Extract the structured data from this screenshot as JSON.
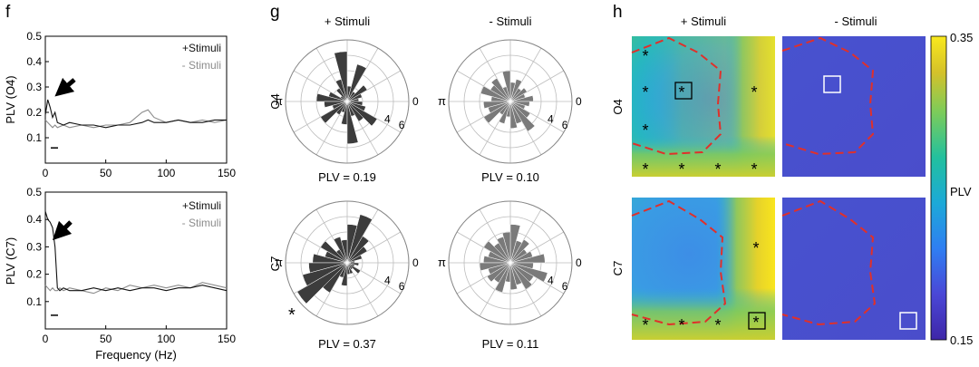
{
  "colors": {
    "stim": "#111111",
    "nostim": "#8c8c8c",
    "rose_stim": "#3c3c3c",
    "rose_nostim": "#7a7a7a",
    "contour": "#e0302a",
    "colormap": [
      "#3e26a8",
      "#4a47d6",
      "#2f7ef2",
      "#1ca9d8",
      "#22c09e",
      "#7ccc5a",
      "#d4c12a",
      "#f9e91d"
    ]
  },
  "panel_f": {
    "label": "f",
    "xlabel": "Frequency (Hz)",
    "xticks": [
      "0",
      "50",
      "100",
      "150"
    ],
    "yticks": [
      "0.1",
      "0.2",
      "0.3",
      "0.4",
      "0.5"
    ],
    "legend_stim": "+Stimuli",
    "legend_nostim": "- Stimuli",
    "arrow_icon": "arrow-icon",
    "plots": [
      {
        "ylabel": "PLV (O4)",
        "xlim": [
          0,
          150
        ],
        "ylim": [
          0,
          0.5
        ],
        "baseline_dash": 0.06,
        "series": [
          {
            "name": "+Stimuli",
            "x": [
              0,
              2,
              4,
              6,
              8,
              10,
              15,
              20,
              30,
              40,
              50,
              60,
              70,
              80,
              85,
              90,
              100,
              110,
              120,
              130,
              140,
              150
            ],
            "values": [
              0.19,
              0.25,
              0.22,
              0.18,
              0.2,
              0.16,
              0.15,
              0.16,
              0.15,
              0.15,
              0.14,
              0.15,
              0.15,
              0.16,
              0.17,
              0.16,
              0.16,
              0.17,
              0.16,
              0.16,
              0.17,
              0.17
            ]
          },
          {
            "name": "- Stimuli",
            "x": [
              0,
              2,
              4,
              6,
              8,
              10,
              15,
              20,
              30,
              40,
              50,
              60,
              70,
              80,
              85,
              90,
              100,
              110,
              120,
              130,
              140,
              150
            ],
            "values": [
              0.17,
              0.16,
              0.15,
              0.14,
              0.15,
              0.14,
              0.15,
              0.14,
              0.15,
              0.14,
              0.15,
              0.15,
              0.16,
              0.2,
              0.21,
              0.18,
              0.16,
              0.17,
              0.16,
              0.17,
              0.16,
              0.17
            ]
          }
        ]
      },
      {
        "ylabel": "PLV (C7)",
        "xlim": [
          0,
          150
        ],
        "ylim": [
          0,
          0.5
        ],
        "baseline_dash": 0.05,
        "series": [
          {
            "name": "+Stimuli",
            "x": [
              0,
              2,
              4,
              6,
              8,
              10,
              12,
              15,
              20,
              30,
              40,
              50,
              60,
              70,
              80,
              90,
              100,
              110,
              120,
              130,
              140,
              150
            ],
            "values": [
              0.43,
              0.4,
              0.39,
              0.37,
              0.3,
              0.15,
              0.14,
              0.15,
              0.14,
              0.14,
              0.15,
              0.14,
              0.15,
              0.14,
              0.15,
              0.15,
              0.14,
              0.15,
              0.15,
              0.16,
              0.15,
              0.14
            ]
          },
          {
            "name": "- Stimuli",
            "x": [
              0,
              2,
              4,
              6,
              8,
              10,
              12,
              15,
              20,
              30,
              40,
              50,
              60,
              70,
              80,
              90,
              100,
              110,
              120,
              130,
              140,
              150
            ],
            "values": [
              0.16,
              0.15,
              0.14,
              0.15,
              0.14,
              0.14,
              0.15,
              0.14,
              0.15,
              0.14,
              0.13,
              0.15,
              0.14,
              0.16,
              0.15,
              0.16,
              0.15,
              0.16,
              0.15,
              0.17,
              0.16,
              0.15
            ]
          }
        ]
      }
    ]
  },
  "panel_g": {
    "label": "g",
    "col_titles": [
      "+ Stimuli",
      "- Stimuli"
    ],
    "row_labels": [
      "O4",
      "C7"
    ],
    "angle_zero": "0",
    "angle_pi": "π",
    "radial_ticks": [
      "4",
      "6"
    ],
    "star": "*",
    "roses": [
      {
        "plv": "PLV = 0.19",
        "counts": [
          1.5,
          2,
          3,
          1.5,
          5,
          2,
          6.5,
          3,
          2,
          1,
          2.5,
          4,
          3,
          2,
          4,
          2,
          1.5,
          3,
          5.5,
          2,
          3,
          4.5,
          2.5,
          2
        ]
      },
      {
        "plv": "PLV = 0.10",
        "counts": [
          3,
          2,
          2.5,
          2,
          3,
          2.5,
          4,
          2,
          3.5,
          3,
          4,
          2.5,
          3.5,
          3,
          4,
          2,
          3,
          2,
          3.5,
          3,
          4.5,
          3,
          2,
          2.5
        ]
      },
      {
        "plv": "PLV = 0.37",
        "counts": [
          1,
          2,
          3,
          4,
          6.5,
          5,
          3,
          3.5,
          2,
          4,
          3,
          4.5,
          5,
          6,
          7.5,
          4.5,
          2,
          3,
          1.5,
          1.5,
          1,
          2,
          1,
          1.5
        ]
      },
      {
        "plv": "PLV = 0.11",
        "counts": [
          4.5,
          3,
          2.5,
          3.5,
          3,
          5,
          4,
          3.5,
          3,
          4,
          3,
          3.5,
          4,
          3,
          3.5,
          3,
          4,
          2.5,
          3.5,
          3,
          4,
          3.5,
          5,
          3
        ]
      }
    ]
  },
  "panel_h": {
    "label": "h",
    "col_titles": [
      "+ Stimuli",
      "- Stimuli"
    ],
    "row_labels": [
      "O4",
      "C7"
    ],
    "colorbar_max": "0.35",
    "colorbar_min": "0.15",
    "colorbar_label": "PLV",
    "star": "*"
  }
}
